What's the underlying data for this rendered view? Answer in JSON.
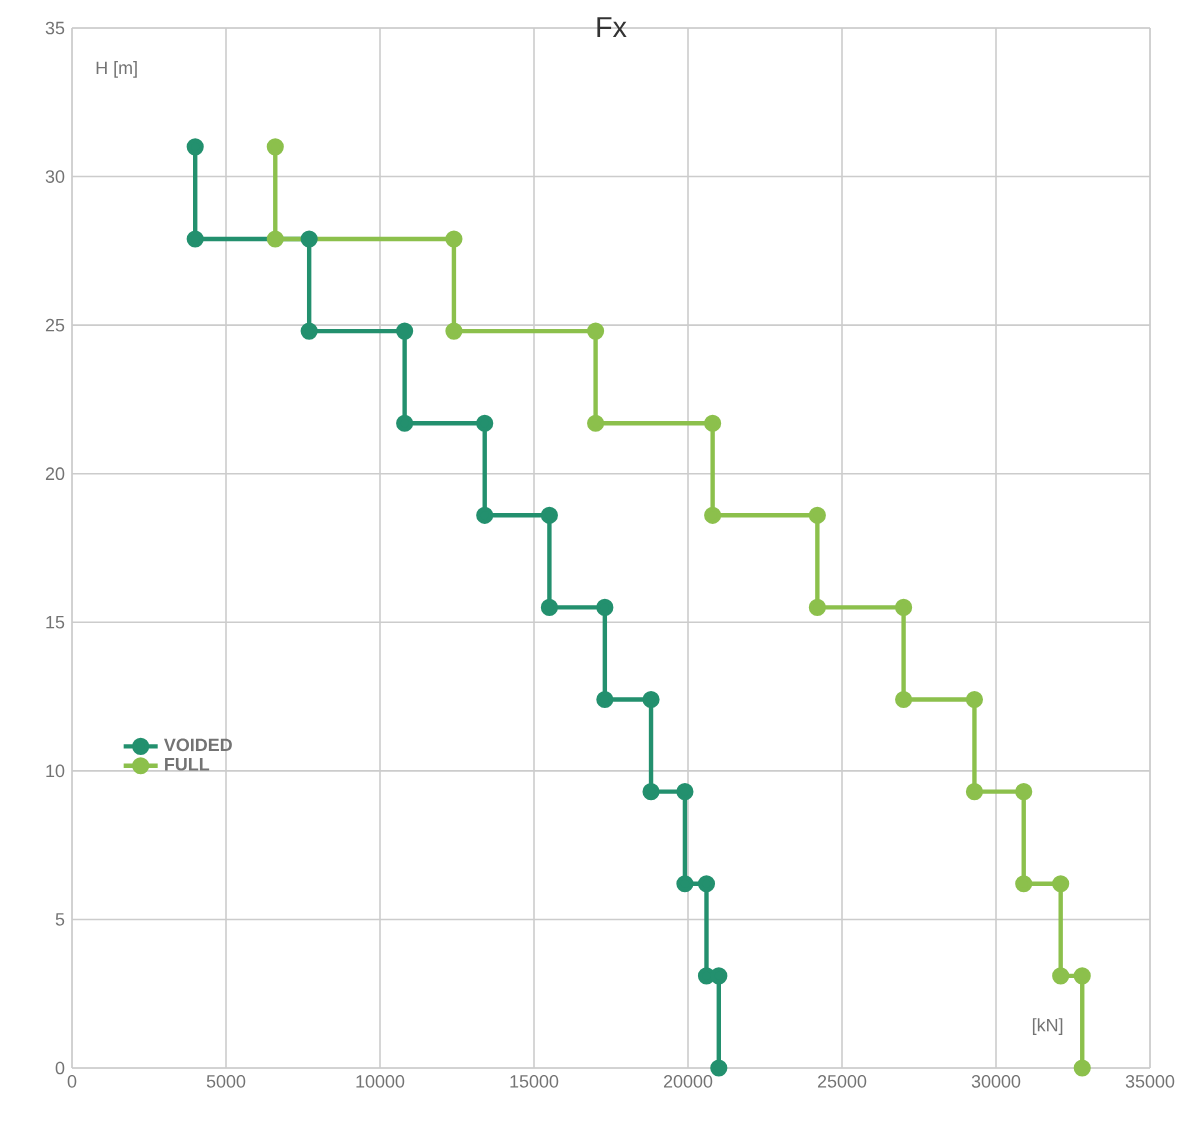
{
  "chart_data": {
    "type": "line",
    "title": "Fx",
    "xlabel": "[kN]",
    "ylabel": "H [m]",
    "xlim": [
      0,
      35000
    ],
    "ylim": [
      0,
      35
    ],
    "xticks": [
      0,
      5000,
      10000,
      15000,
      20000,
      25000,
      30000,
      35000
    ],
    "yticks": [
      0,
      5,
      10,
      15,
      20,
      25,
      30,
      35
    ],
    "grid": true,
    "legend": "left",
    "marker": "circle",
    "line_style": "solid",
    "series": [
      {
        "name": "VOIDED",
        "color": "#23906e",
        "x": [
          4000,
          4000,
          7700,
          7700,
          10800,
          10800,
          13400,
          13400,
          15500,
          15500,
          17300,
          17300,
          18800,
          18800,
          19900,
          19900,
          20600,
          20600,
          21000,
          21000
        ],
        "values": [
          31,
          27.9,
          27.9,
          24.8,
          24.8,
          21.7,
          21.7,
          18.6,
          18.6,
          15.5,
          15.5,
          12.4,
          12.4,
          9.3,
          9.3,
          6.2,
          6.2,
          3.1,
          3.1,
          0
        ]
      },
      {
        "name": "FULL",
        "color": "#8cc04c",
        "x": [
          6600,
          6600,
          12400,
          12400,
          17000,
          17000,
          20800,
          20800,
          24200,
          24200,
          27000,
          27000,
          29300,
          29300,
          30900,
          30900,
          32100,
          32100,
          32800,
          32800
        ],
        "values": [
          31,
          27.9,
          27.9,
          24.8,
          24.8,
          21.7,
          21.7,
          18.6,
          18.6,
          15.5,
          15.5,
          12.4,
          12.4,
          9.3,
          9.3,
          6.2,
          6.2,
          3.1,
          3.1,
          0
        ]
      }
    ]
  }
}
